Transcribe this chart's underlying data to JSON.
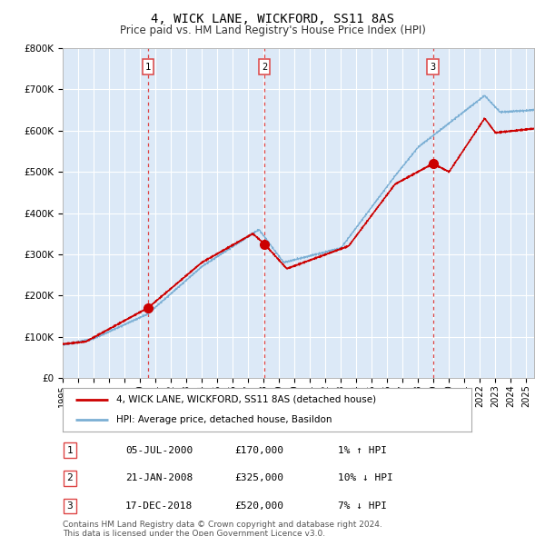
{
  "title": "4, WICK LANE, WICKFORD, SS11 8AS",
  "subtitle": "Price paid vs. HM Land Registry's House Price Index (HPI)",
  "background_color": "#dce9f7",
  "ylim": [
    0,
    800000
  ],
  "yticks": [
    0,
    100000,
    200000,
    300000,
    400000,
    500000,
    600000,
    700000,
    800000
  ],
  "ytick_labels": [
    "£0",
    "£100K",
    "£200K",
    "£300K",
    "£400K",
    "£500K",
    "£600K",
    "£700K",
    "£800K"
  ],
  "hpi_color": "#7bafd4",
  "price_color": "#cc0000",
  "dashed_line_color": "#dd4444",
  "sale1_date": 2000.52,
  "sale1_price": 170000,
  "sale1_label": "05-JUL-2000",
  "sale1_pct": "1% ↑ HPI",
  "sale2_date": 2008.05,
  "sale2_price": 325000,
  "sale2_label": "21-JAN-2008",
  "sale2_pct": "10% ↓ HPI",
  "sale3_date": 2018.96,
  "sale3_price": 520000,
  "sale3_label": "17-DEC-2018",
  "sale3_pct": "7% ↓ HPI",
  "legend_line1": "4, WICK LANE, WICKFORD, SS11 8AS (detached house)",
  "legend_line2": "HPI: Average price, detached house, Basildon",
  "footer1": "Contains HM Land Registry data © Crown copyright and database right 2024.",
  "footer2": "This data is licensed under the Open Government Licence v3.0.",
  "xmin": 1995.0,
  "xmax": 2025.5
}
